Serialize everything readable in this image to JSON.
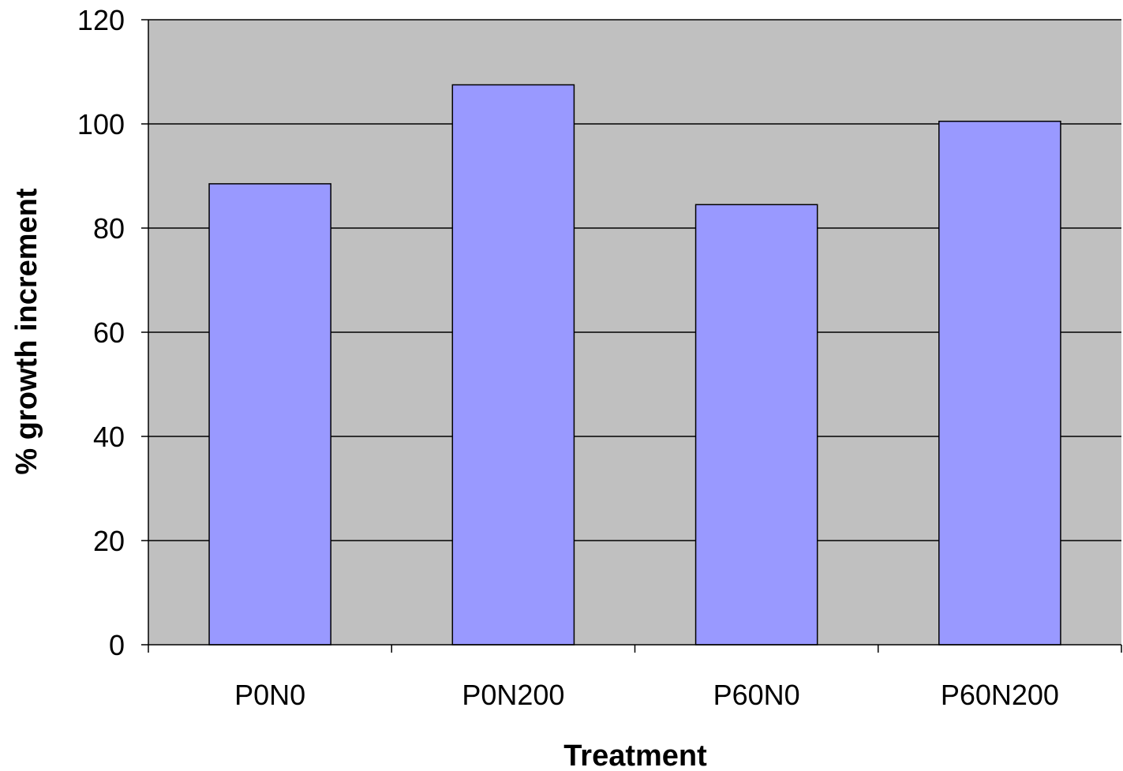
{
  "chart_data": {
    "type": "bar",
    "title": "",
    "xlabel": "Treatment",
    "ylabel": "% growth increment",
    "categories": [
      "P0N0",
      "P0N200",
      "P60N0",
      "P60N200"
    ],
    "values": [
      88.5,
      107.5,
      84.5,
      100.5
    ],
    "ylim": [
      0,
      120
    ],
    "yticks": [
      0,
      20,
      40,
      60,
      80,
      100,
      120
    ],
    "grid": true,
    "legend": "none",
    "colors": {
      "bar_fill": "#9999ff",
      "bar_stroke": "#000000",
      "plot_background": "#c0c0c0",
      "gridline": "#000000"
    }
  }
}
